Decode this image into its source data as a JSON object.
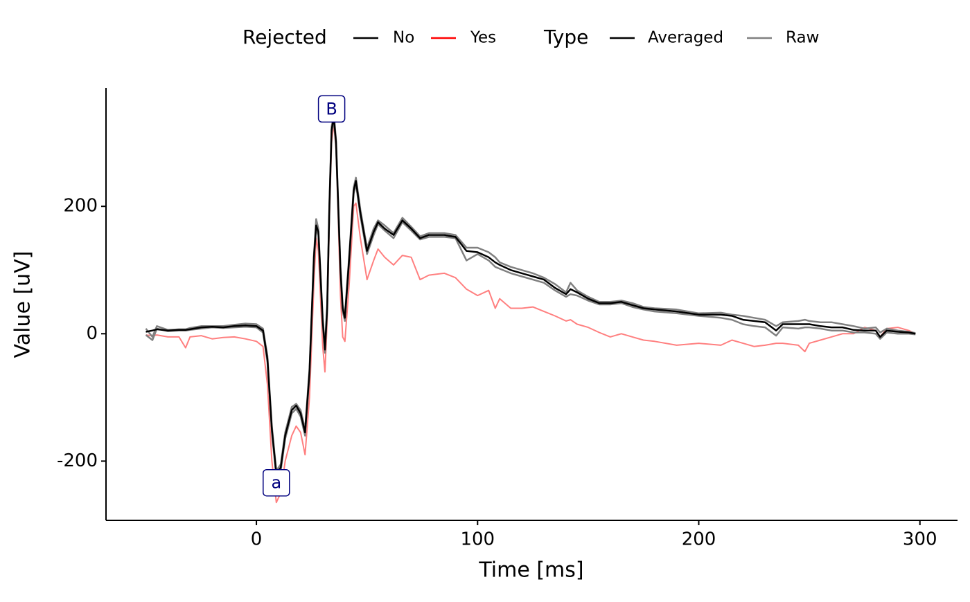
{
  "chart_data": {
    "type": "line",
    "xlabel": "Time [ms]",
    "ylabel": "Value [uV]",
    "xlim": [
      -68,
      317
    ],
    "ylim": [
      -293,
      386
    ],
    "xticks": [
      0,
      100,
      200,
      300
    ],
    "yticks": [
      -200,
      0,
      200
    ],
    "grid": false,
    "legend_position": "top",
    "legend": [
      {
        "title": "Rejected",
        "entries": [
          {
            "label": "No",
            "color": "#000000"
          },
          {
            "label": "Yes",
            "color": "#ff0000"
          }
        ]
      },
      {
        "title": "Type",
        "entries": [
          {
            "label": "Averaged",
            "color": "#000000"
          },
          {
            "label": "Raw",
            "color": "#808080"
          }
        ]
      }
    ],
    "annotations": [
      {
        "label": "B",
        "x": 34,
        "y": 353,
        "color": "#00007f"
      },
      {
        "label": "a",
        "x": 9,
        "y": -234,
        "color": "#00007f"
      }
    ],
    "x": [
      -50,
      -47,
      -45,
      -40,
      -35,
      -32,
      -30,
      -25,
      -20,
      -15,
      -10,
      -5,
      0,
      3,
      5,
      7,
      9,
      11,
      13,
      16,
      18,
      20,
      22,
      24,
      26,
      27,
      28,
      30,
      31,
      32,
      33,
      34,
      35,
      36,
      37,
      38,
      39,
      40,
      42,
      44,
      45,
      47,
      50,
      53,
      55,
      58,
      62,
      66,
      70,
      74,
      78,
      85,
      90,
      95,
      100,
      105,
      108,
      110,
      115,
      120,
      125,
      130,
      135,
      140,
      142,
      145,
      150,
      155,
      160,
      165,
      170,
      175,
      180,
      190,
      200,
      210,
      215,
      220,
      225,
      230,
      235,
      238,
      245,
      248,
      250,
      255,
      260,
      265,
      270,
      275,
      280,
      282,
      285,
      290,
      295,
      298
    ],
    "series": [
      {
        "color": "#ff0000",
        "opacity": 0.5,
        "width": 2,
        "values": [
          -2,
          -3,
          -2,
          -5,
          -5,
          -22,
          -5,
          -3,
          -8,
          -6,
          -5,
          -8,
          -12,
          -20,
          -80,
          -200,
          -265,
          -250,
          -200,
          -160,
          -145,
          -155,
          -190,
          -100,
          80,
          150,
          130,
          -20,
          -60,
          20,
          180,
          300,
          330,
          290,
          180,
          60,
          -5,
          -12,
          80,
          200,
          205,
          150,
          85,
          115,
          133,
          120,
          108,
          123,
          120,
          85,
          92,
          95,
          88,
          70,
          60,
          68,
          40,
          55,
          40,
          40,
          42,
          35,
          28,
          20,
          22,
          15,
          10,
          2,
          -5,
          0,
          -5,
          -10,
          -12,
          -18,
          -15,
          -18,
          -10,
          -15,
          -20,
          -18,
          -15,
          -15,
          -18,
          -28,
          -15,
          -10,
          -5,
          0,
          0,
          10,
          5,
          -5,
          8,
          10,
          5,
          0
        ]
      },
      {
        "color": "#808080",
        "opacity": 1,
        "width": 2.5,
        "values": [
          8,
          -5,
          12,
          6,
          7,
          7,
          9,
          12,
          12,
          12,
          14,
          16,
          15,
          8,
          -35,
          -145,
          -215,
          -205,
          -155,
          -115,
          -110,
          -120,
          -150,
          -55,
          125,
          180,
          165,
          25,
          -20,
          45,
          205,
          325,
          345,
          305,
          205,
          105,
          45,
          30,
          125,
          230,
          245,
          195,
          135,
          165,
          178,
          170,
          158,
          182,
          168,
          153,
          158,
          158,
          155,
          135,
          135,
          128,
          120,
          112,
          105,
          100,
          95,
          88,
          78,
          65,
          80,
          68,
          58,
          50,
          50,
          52,
          48,
          42,
          40,
          38,
          32,
          33,
          30,
          28,
          25,
          22,
          12,
          18,
          20,
          22,
          20,
          18,
          18,
          15,
          12,
          8,
          10,
          2,
          8,
          5,
          3,
          1
        ]
      },
      {
        "color": "#808080",
        "opacity": 1,
        "width": 2.5,
        "values": [
          -2,
          -10,
          8,
          4,
          5,
          5,
          6,
          8,
          10,
          9,
          10,
          11,
          10,
          2,
          -45,
          -155,
          -225,
          -215,
          -165,
          -125,
          -118,
          -130,
          -160,
          -65,
          115,
          165,
          155,
          15,
          -30,
          35,
          195,
          315,
          335,
          295,
          195,
          95,
          35,
          20,
          115,
          220,
          235,
          185,
          125,
          155,
          172,
          162,
          150,
          175,
          162,
          148,
          152,
          152,
          150,
          115,
          125,
          115,
          105,
          102,
          95,
          90,
          85,
          80,
          68,
          58,
          62,
          60,
          52,
          46,
          46,
          48,
          42,
          38,
          35,
          32,
          28,
          25,
          22,
          15,
          12,
          10,
          -3,
          10,
          8,
          10,
          10,
          8,
          5,
          5,
          2,
          2,
          0,
          -8,
          2,
          0,
          0,
          -1
        ]
      },
      {
        "color": "#000000",
        "opacity": 1,
        "width": 2.5,
        "values": [
          3,
          5,
          7,
          5,
          6,
          6,
          7,
          10,
          11,
          10,
          12,
          13,
          12,
          5,
          -40,
          -150,
          -220,
          -210,
          -160,
          -120,
          -113,
          -125,
          -155,
          -60,
          120,
          170,
          160,
          20,
          -25,
          40,
          200,
          320,
          340,
          300,
          200,
          100,
          40,
          25,
          120,
          225,
          240,
          190,
          130,
          160,
          175,
          165,
          155,
          178,
          165,
          150,
          155,
          155,
          152,
          130,
          128,
          120,
          112,
          108,
          100,
          95,
          90,
          85,
          72,
          62,
          70,
          65,
          55,
          48,
          48,
          50,
          45,
          40,
          38,
          35,
          30,
          30,
          28,
          22,
          20,
          18,
          5,
          15,
          15,
          15,
          15,
          12,
          10,
          10,
          6,
          5,
          5,
          -5,
          5,
          3,
          2,
          0
        ]
      }
    ]
  }
}
